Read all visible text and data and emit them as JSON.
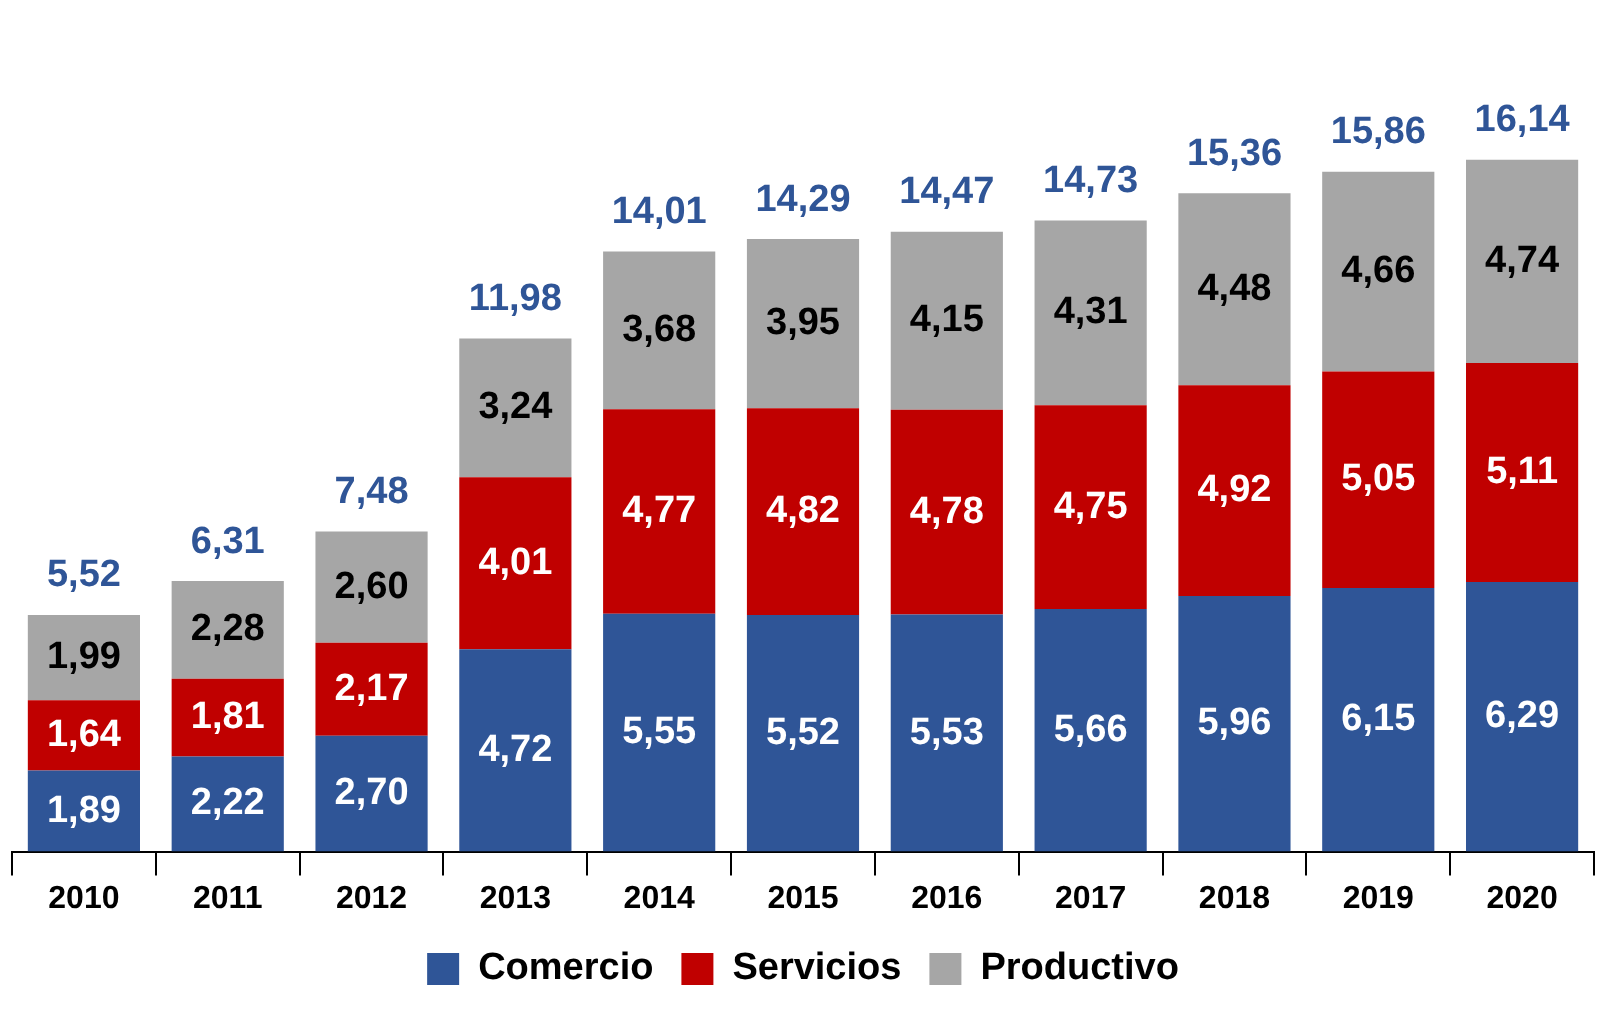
{
  "chart_data": {
    "type": "bar",
    "stacked": true,
    "legend": "bottom",
    "grid": false,
    "categories": [
      "2010",
      "2011",
      "2012",
      "2013",
      "2014",
      "2015",
      "2016",
      "2017",
      "2018",
      "2019",
      "2020"
    ],
    "series": [
      {
        "name": "Comercio",
        "color": "#2f5597",
        "values": [
          1.89,
          2.22,
          2.7,
          4.72,
          5.55,
          5.52,
          5.53,
          5.66,
          5.96,
          6.15,
          6.29
        ],
        "value_labels": [
          "1,89",
          "2,22",
          "2,70",
          "4,72",
          "5,55",
          "5,52",
          "5,53",
          "5,66",
          "5,96",
          "6,15",
          "6,29"
        ]
      },
      {
        "name": "Servicios",
        "color": "#c00000",
        "values": [
          1.64,
          1.81,
          2.17,
          4.01,
          4.77,
          4.82,
          4.78,
          4.75,
          4.92,
          5.05,
          5.11
        ],
        "value_labels": [
          "1,64",
          "1,81",
          "2,17",
          "4,01",
          "4,77",
          "4,82",
          "4,78",
          "4,75",
          "4,92",
          "5,05",
          "5,11"
        ]
      },
      {
        "name": "Productivo",
        "color": "#a6a6a6",
        "values": [
          1.99,
          2.28,
          2.6,
          3.24,
          3.68,
          3.95,
          4.15,
          4.31,
          4.48,
          4.66,
          4.74
        ],
        "value_labels": [
          "1,99",
          "2,28",
          "2,60",
          "3,24",
          "3,68",
          "3,95",
          "4,15",
          "4,31",
          "4,48",
          "4,66",
          "4,74"
        ]
      }
    ],
    "totals": [
      "5,52",
      "6,31",
      "7,48",
      "11,98",
      "14,01",
      "14,29",
      "14,47",
      "14,73",
      "15,36",
      "15,86",
      "16,14"
    ]
  }
}
